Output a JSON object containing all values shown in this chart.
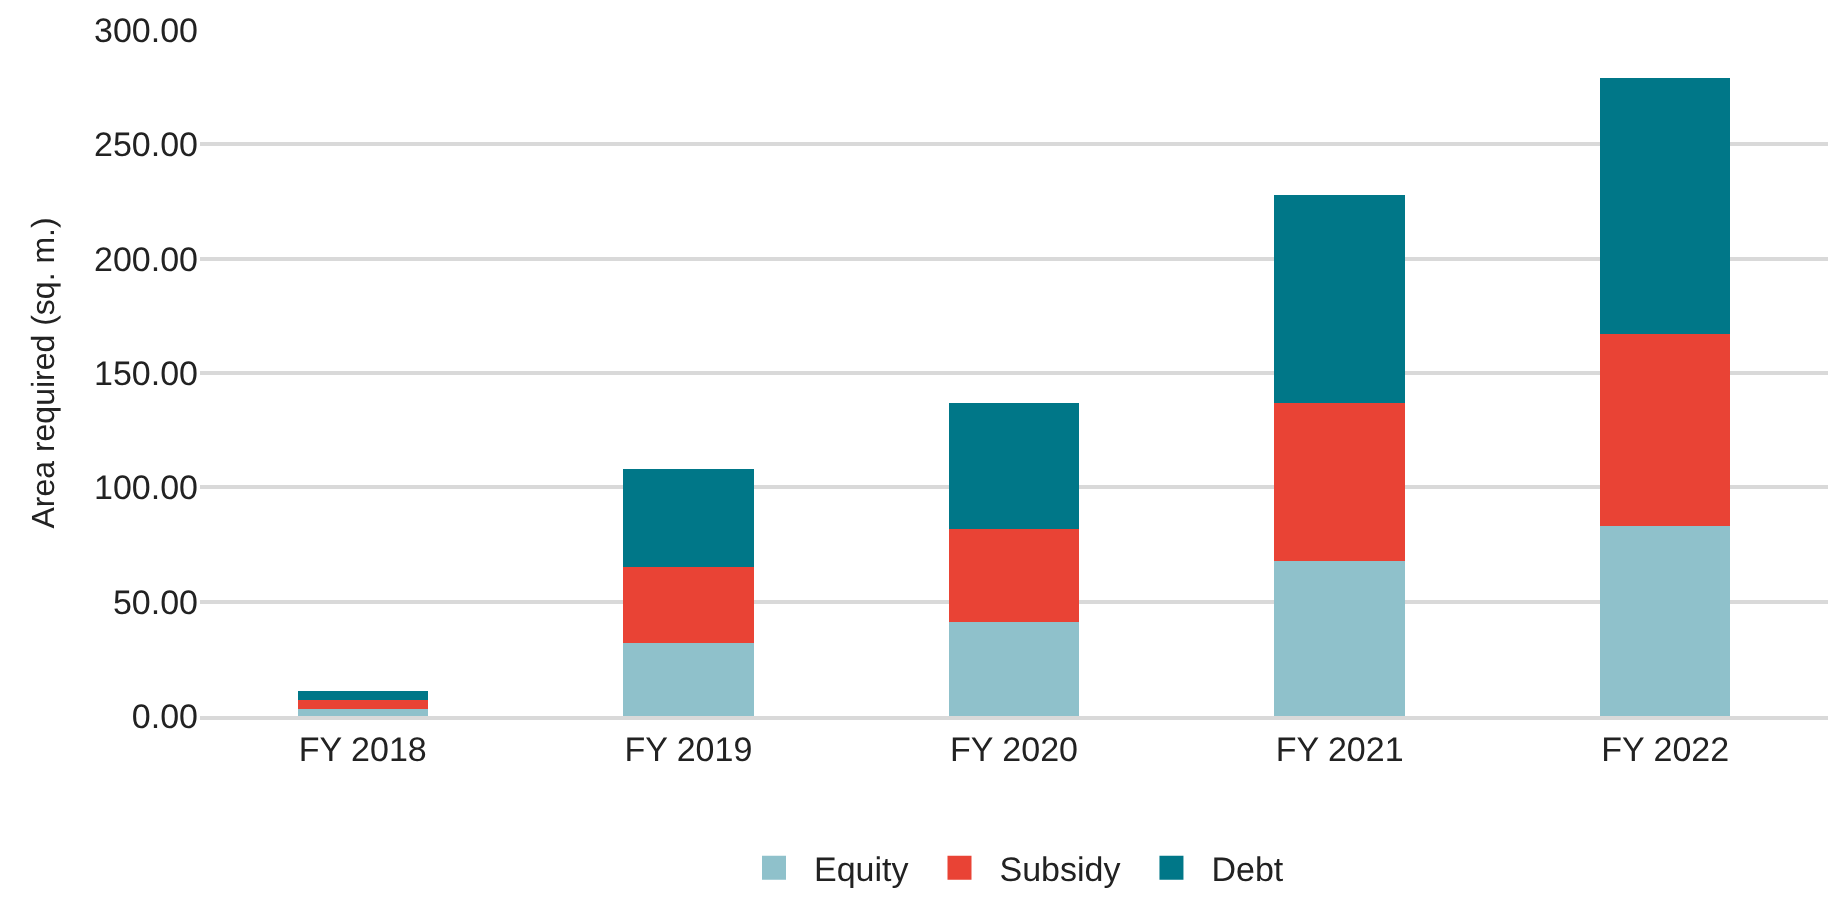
{
  "chart_data": {
    "type": "bar",
    "stacked": true,
    "ylabel": "Area required (sq. m.)",
    "categories": [
      "FY 2018",
      "FY 2019",
      "FY 2020",
      "FY 2021",
      "FY 2022"
    ],
    "series": [
      {
        "name": "Equity",
        "color": "#8fc1cb",
        "values": [
          3,
          32,
          41,
          68,
          83
        ]
      },
      {
        "name": "Subsidy",
        "color": "#e94335",
        "values": [
          4,
          33,
          41,
          69,
          84
        ]
      },
      {
        "name": "Debt",
        "color": "#007788",
        "values": [
          4,
          43,
          55,
          91,
          112
        ]
      }
    ],
    "ylim": [
      0,
      300
    ],
    "yticks": [
      {
        "value": 0,
        "label": "0.00"
      },
      {
        "value": 50,
        "label": "50.00"
      },
      {
        "value": 100,
        "label": "100.00"
      },
      {
        "value": 150,
        "label": "150.00"
      },
      {
        "value": 200,
        "label": "200.00"
      },
      {
        "value": 250,
        "label": "250.00"
      },
      {
        "value": 300,
        "label": "300.00"
      }
    ],
    "grid": "y",
    "legend": "bottom"
  }
}
